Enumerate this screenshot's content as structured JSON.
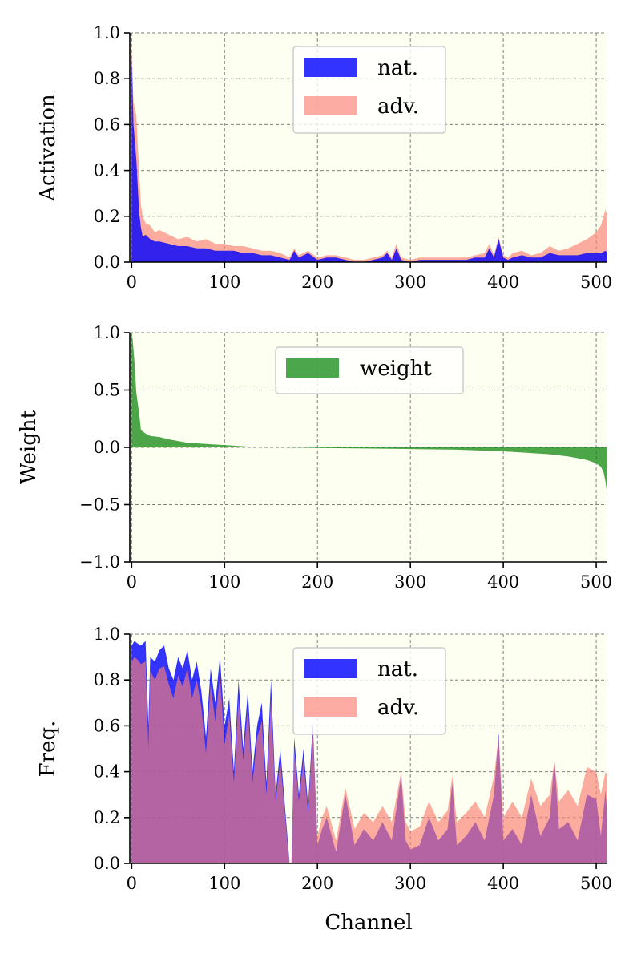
{
  "chart_data": [
    {
      "type": "area",
      "name": "activation",
      "ylabel": "Activation",
      "xlabel": "",
      "xlim": [
        -2,
        512
      ],
      "ylim": [
        0.0,
        1.0
      ],
      "xticks": [
        0,
        100,
        200,
        300,
        400,
        500
      ],
      "yticks": [
        0.0,
        0.2,
        0.4,
        0.6,
        0.8,
        1.0
      ],
      "ytick_labels": [
        "0.0",
        "0.2",
        "0.4",
        "0.6",
        "0.8",
        "1.0"
      ],
      "xtick_labels": [
        "0",
        "100",
        "200",
        "300",
        "400",
        "500"
      ],
      "grid": true,
      "legend_position": "upper-center",
      "series": [
        {
          "name": "adv.",
          "color": "#fa8072",
          "x": [
            0,
            2,
            5,
            8,
            10,
            12,
            15,
            20,
            25,
            30,
            40,
            50,
            60,
            70,
            80,
            90,
            100,
            110,
            120,
            130,
            140,
            150,
            160,
            170,
            175,
            180,
            190,
            200,
            210,
            220,
            230,
            240,
            250,
            260,
            270,
            275,
            280,
            285,
            290,
            300,
            310,
            320,
            330,
            340,
            350,
            360,
            370,
            380,
            385,
            390,
            395,
            400,
            405,
            410,
            420,
            430,
            440,
            450,
            460,
            470,
            480,
            490,
            500,
            505,
            510,
            512
          ],
          "values": [
            0.95,
            0.7,
            0.64,
            0.4,
            0.25,
            0.2,
            0.17,
            0.16,
            0.13,
            0.14,
            0.12,
            0.1,
            0.11,
            0.09,
            0.1,
            0.08,
            0.08,
            0.07,
            0.07,
            0.06,
            0.05,
            0.05,
            0.04,
            0.02,
            0.06,
            0.03,
            0.05,
            0.02,
            0.03,
            0.03,
            0.02,
            0.01,
            0.01,
            0.02,
            0.03,
            0.05,
            0.02,
            0.08,
            0.02,
            0.01,
            0.02,
            0.02,
            0.02,
            0.02,
            0.02,
            0.02,
            0.03,
            0.04,
            0.08,
            0.03,
            0.11,
            0.03,
            0.02,
            0.04,
            0.05,
            0.03,
            0.04,
            0.07,
            0.05,
            0.06,
            0.08,
            0.1,
            0.13,
            0.16,
            0.23,
            0.2
          ]
        },
        {
          "name": "nat.",
          "color": "#0000ff",
          "x": [
            0,
            2,
            5,
            8,
            10,
            12,
            15,
            20,
            25,
            30,
            40,
            50,
            60,
            70,
            80,
            90,
            100,
            110,
            120,
            130,
            140,
            150,
            160,
            170,
            175,
            180,
            190,
            200,
            210,
            220,
            230,
            240,
            250,
            260,
            270,
            275,
            280,
            285,
            290,
            300,
            310,
            320,
            330,
            340,
            350,
            360,
            370,
            380,
            385,
            390,
            395,
            400,
            405,
            410,
            420,
            430,
            440,
            450,
            460,
            470,
            480,
            490,
            500,
            505,
            510,
            512
          ],
          "values": [
            0.9,
            0.6,
            0.45,
            0.22,
            0.15,
            0.11,
            0.12,
            0.1,
            0.09,
            0.09,
            0.08,
            0.07,
            0.07,
            0.06,
            0.06,
            0.05,
            0.05,
            0.05,
            0.04,
            0.04,
            0.03,
            0.03,
            0.02,
            0.01,
            0.05,
            0.02,
            0.04,
            0.01,
            0.02,
            0.02,
            0.01,
            0.0,
            0.0,
            0.01,
            0.02,
            0.04,
            0.01,
            0.06,
            0.01,
            0.0,
            0.01,
            0.01,
            0.01,
            0.01,
            0.01,
            0.01,
            0.02,
            0.02,
            0.06,
            0.02,
            0.1,
            0.02,
            0.01,
            0.02,
            0.03,
            0.02,
            0.02,
            0.04,
            0.03,
            0.03,
            0.03,
            0.04,
            0.04,
            0.04,
            0.05,
            0.04
          ]
        }
      ],
      "legend": [
        {
          "label": "nat.",
          "color": "#0000ff"
        },
        {
          "label": "adv.",
          "color": "#fa8072"
        }
      ]
    },
    {
      "type": "area",
      "name": "weight",
      "ylabel": "Weight",
      "xlabel": "",
      "xlim": [
        -2,
        512
      ],
      "ylim": [
        -1.0,
        1.0
      ],
      "xticks": [
        0,
        100,
        200,
        300,
        400,
        500
      ],
      "yticks": [
        -1.0,
        -0.5,
        0.0,
        0.5,
        1.0
      ],
      "ytick_labels": [
        "−1.0",
        "−0.5",
        "0.0",
        "0.5",
        "1.0"
      ],
      "xtick_labels": [
        "0",
        "100",
        "200",
        "300",
        "400",
        "500"
      ],
      "grid": true,
      "legend_position": "upper-center",
      "series": [
        {
          "name": "weight",
          "color": "#008000",
          "x": [
            0,
            1,
            3,
            5,
            8,
            10,
            15,
            20,
            30,
            40,
            60,
            80,
            100,
            120,
            140,
            160,
            200,
            250,
            300,
            350,
            400,
            430,
            450,
            470,
            490,
            500,
            505,
            508,
            510,
            512
          ],
          "values": [
            1.0,
            0.95,
            0.75,
            0.48,
            0.3,
            0.15,
            0.12,
            0.1,
            0.09,
            0.07,
            0.04,
            0.03,
            0.02,
            0.01,
            0.0,
            0.0,
            -0.005,
            -0.01,
            -0.015,
            -0.02,
            -0.035,
            -0.05,
            -0.06,
            -0.08,
            -0.11,
            -0.14,
            -0.17,
            -0.22,
            -0.3,
            -0.42
          ]
        }
      ],
      "legend": [
        {
          "label": "weight",
          "color": "#008000"
        }
      ]
    },
    {
      "type": "area",
      "name": "frequency",
      "ylabel": "Freq.",
      "xlabel": "Channel",
      "xlim": [
        -2,
        512
      ],
      "ylim": [
        0.0,
        1.0
      ],
      "xticks": [
        0,
        100,
        200,
        300,
        400,
        500
      ],
      "yticks": [
        0.0,
        0.2,
        0.4,
        0.6,
        0.8,
        1.0
      ],
      "ytick_labels": [
        "0.0",
        "0.2",
        "0.4",
        "0.6",
        "0.8",
        "1.0"
      ],
      "xtick_labels": [
        "0",
        "100",
        "200",
        "300",
        "400",
        "500"
      ],
      "grid": true,
      "legend_position": "upper-center",
      "series": [
        {
          "name": "nat.",
          "color": "#0000ff",
          "x": [
            0,
            3,
            6,
            10,
            15,
            18,
            20,
            25,
            30,
            35,
            40,
            45,
            50,
            55,
            60,
            65,
            70,
            75,
            80,
            85,
            90,
            95,
            100,
            105,
            110,
            115,
            120,
            125,
            130,
            135,
            140,
            145,
            150,
            155,
            160,
            165,
            168,
            170,
            172,
            175,
            180,
            185,
            190,
            195,
            200,
            205,
            210,
            220,
            230,
            240,
            250,
            260,
            270,
            280,
            290,
            295,
            300,
            310,
            320,
            330,
            340,
            345,
            350,
            360,
            370,
            380,
            390,
            395,
            400,
            410,
            420,
            430,
            440,
            450,
            455,
            460,
            470,
            480,
            490,
            500,
            505,
            510,
            512
          ],
          "values": [
            0.95,
            0.97,
            0.96,
            0.95,
            0.97,
            0.6,
            0.9,
            0.88,
            0.93,
            0.95,
            0.85,
            0.8,
            0.9,
            0.85,
            0.93,
            0.8,
            0.88,
            0.75,
            0.55,
            0.85,
            0.7,
            0.9,
            0.6,
            0.72,
            0.4,
            0.8,
            0.5,
            0.75,
            0.4,
            0.6,
            0.7,
            0.35,
            0.8,
            0.3,
            0.5,
            0.25,
            0.1,
            0.0,
            0.0,
            0.55,
            0.3,
            0.5,
            0.25,
            0.62,
            0.08,
            0.15,
            0.2,
            0.05,
            0.3,
            0.08,
            0.15,
            0.1,
            0.18,
            0.1,
            0.38,
            0.1,
            0.06,
            0.08,
            0.2,
            0.1,
            0.15,
            0.35,
            0.08,
            0.12,
            0.18,
            0.1,
            0.3,
            0.57,
            0.1,
            0.15,
            0.08,
            0.3,
            0.12,
            0.2,
            0.45,
            0.15,
            0.18,
            0.1,
            0.3,
            0.28,
            0.12,
            0.32,
            0.2
          ]
        },
        {
          "name": "adv.",
          "color": "#fa8072",
          "x": [
            0,
            3,
            6,
            10,
            15,
            18,
            20,
            25,
            30,
            35,
            40,
            45,
            50,
            55,
            60,
            65,
            70,
            75,
            80,
            85,
            90,
            95,
            100,
            105,
            110,
            115,
            120,
            125,
            130,
            135,
            140,
            145,
            150,
            155,
            160,
            165,
            168,
            170,
            172,
            175,
            180,
            185,
            190,
            195,
            200,
            205,
            210,
            220,
            230,
            240,
            250,
            260,
            270,
            280,
            290,
            295,
            300,
            310,
            320,
            330,
            340,
            345,
            350,
            360,
            370,
            380,
            390,
            395,
            400,
            410,
            420,
            430,
            440,
            450,
            455,
            460,
            470,
            480,
            490,
            500,
            505,
            510,
            512
          ],
          "values": [
            0.88,
            0.9,
            0.89,
            0.87,
            0.88,
            0.5,
            0.84,
            0.8,
            0.85,
            0.86,
            0.78,
            0.72,
            0.82,
            0.77,
            0.85,
            0.72,
            0.8,
            0.68,
            0.48,
            0.78,
            0.62,
            0.82,
            0.52,
            0.65,
            0.35,
            0.72,
            0.45,
            0.68,
            0.35,
            0.55,
            0.62,
            0.3,
            0.72,
            0.27,
            0.45,
            0.22,
            0.08,
            0.0,
            0.0,
            0.5,
            0.27,
            0.45,
            0.22,
            0.58,
            0.12,
            0.2,
            0.25,
            0.1,
            0.33,
            0.15,
            0.22,
            0.18,
            0.25,
            0.18,
            0.4,
            0.18,
            0.14,
            0.16,
            0.27,
            0.18,
            0.23,
            0.38,
            0.18,
            0.22,
            0.27,
            0.2,
            0.38,
            0.55,
            0.2,
            0.27,
            0.2,
            0.37,
            0.25,
            0.3,
            0.45,
            0.27,
            0.32,
            0.25,
            0.42,
            0.4,
            0.3,
            0.4,
            0.38
          ]
        }
      ],
      "legend": [
        {
          "label": "nat.",
          "color": "#0000ff"
        },
        {
          "label": "adv.",
          "color": "#fa8072"
        }
      ]
    }
  ]
}
